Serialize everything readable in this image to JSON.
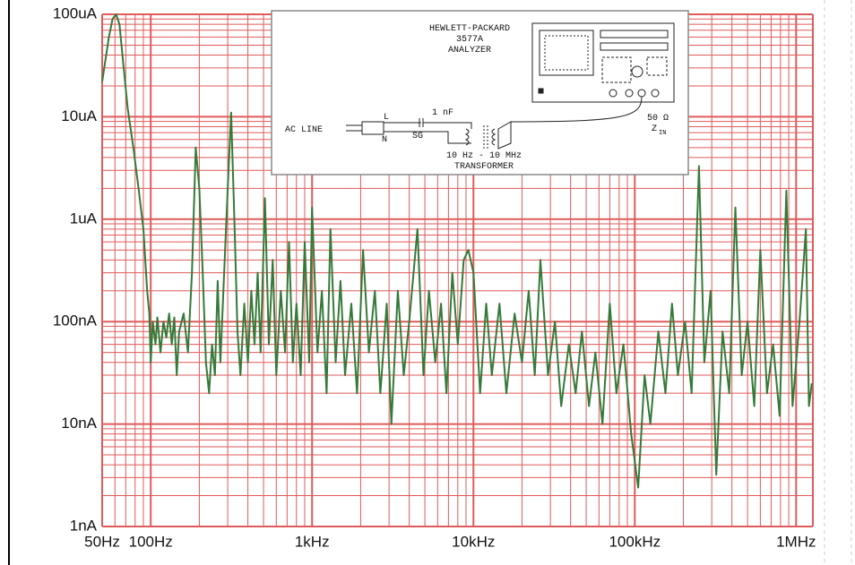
{
  "chart_data": {
    "type": "line",
    "xscale": "log",
    "yscale": "log",
    "xlim": [
      50,
      1270000
    ],
    "ylim": [
      1e-09,
      0.0001
    ],
    "xticks": [
      {
        "value": 50,
        "label": "50Hz"
      },
      {
        "value": 100,
        "label": "100Hz"
      },
      {
        "value": 1000,
        "label": "1kHz"
      },
      {
        "value": 10000,
        "label": "10kHz"
      },
      {
        "value": 100000,
        "label": "100kHz"
      },
      {
        "value": 1000000,
        "label": "1MHz"
      }
    ],
    "yticks": [
      {
        "value": 1e-09,
        "label": "1nA"
      },
      {
        "value": 1e-08,
        "label": "10nA"
      },
      {
        "value": 1e-07,
        "label": "100nA"
      },
      {
        "value": 1e-06,
        "label": "1uA"
      },
      {
        "value": 1e-05,
        "label": "10uA"
      },
      {
        "value": 0.0001,
        "label": "100uA"
      }
    ],
    "grid": true,
    "grid_color": "#e05a5a",
    "color": "#357a38",
    "x": [
      50,
      55,
      58,
      61,
      64,
      68,
      72,
      78,
      84,
      90,
      95,
      98,
      100,
      103,
      107,
      110,
      115,
      120,
      125,
      130,
      135,
      140,
      145,
      150,
      160,
      170,
      180,
      190,
      200,
      210,
      220,
      230,
      240,
      250,
      260,
      270,
      285,
      300,
      315,
      330,
      345,
      360,
      380,
      400,
      420,
      440,
      460,
      480,
      510,
      540,
      570,
      600,
      640,
      680,
      720,
      760,
      800,
      850,
      900,
      960,
      1000,
      1080,
      1150,
      1230,
      1300,
      1400,
      1500,
      1600,
      1750,
      1900,
      2070,
      2250,
      2450,
      2650,
      2900,
      3100,
      3400,
      3700,
      4000,
      4500,
      4900,
      5300,
      5800,
      6300,
      6800,
      7400,
      8000,
      8700,
      9300,
      10000,
      11000,
      12000,
      13000,
      14500,
      16000,
      18000,
      20000,
      22000,
      24000,
      26000,
      29000,
      32000,
      35000,
      39000,
      43000,
      47000,
      52000,
      57000,
      63000,
      70000,
      77000,
      85000,
      95000,
      105000,
      115000,
      125000,
      140000,
      155000,
      170000,
      185000,
      205000,
      225000,
      250000,
      270000,
      295000,
      320000,
      350000,
      385000,
      420000,
      460000,
      500000,
      550000,
      600000,
      660000,
      720000,
      790000,
      870000,
      950000,
      1050000,
      1150000,
      1200000,
      1250000
    ],
    "values": [
      2.2e-05,
      6e-05,
      9e-05,
      0.0001,
      8e-05,
      3e-05,
      1.2e-05,
      5e-06,
      2e-06,
      8e-07,
      2e-07,
      1.2e-07,
      4e-08,
      1e-07,
      6e-08,
      1.1e-07,
      5e-08,
      1e-07,
      7e-08,
      1.2e-07,
      6e-08,
      1.1e-07,
      3e-08,
      8e-08,
      1.2e-07,
      5e-08,
      3e-07,
      5e-06,
      2e-06,
      3e-07,
      4e-08,
      2e-08,
      6e-08,
      3e-08,
      2.5e-07,
      4e-08,
      3e-07,
      2e-06,
      1.1e-05,
      1e-06,
      8e-08,
      3e-08,
      1.5e-07,
      4e-08,
      2e-07,
      6e-08,
      3e-07,
      5e-08,
      1.6e-06,
      6e-08,
      4e-07,
      3e-08,
      2e-07,
      5e-08,
      6e-07,
      4e-08,
      1.5e-07,
      3e-08,
      6e-07,
      4e-08,
      1.3e-06,
      5e-08,
      2e-07,
      2e-08,
      8e-07,
      4e-08,
      2.5e-07,
      3e-08,
      1.5e-07,
      2e-08,
      5e-07,
      5e-08,
      2e-07,
      2e-08,
      1.5e-07,
      1e-08,
      2e-07,
      3e-08,
      1e-07,
      8e-07,
      3e-08,
      2e-07,
      4e-08,
      1.5e-07,
      2e-08,
      3e-07,
      6e-08,
      4e-07,
      5e-07,
      3e-07,
      2e-08,
      1.5e-07,
      3e-08,
      1.5e-07,
      2e-08,
      1.2e-07,
      4e-08,
      2e-07,
      3e-08,
      4e-07,
      3e-08,
      1e-07,
      1.5e-08,
      6e-08,
      2e-08,
      8e-08,
      1.5e-08,
      5e-08,
      1e-08,
      1.5e-07,
      2e-08,
      6e-08,
      8e-09,
      2.4e-09,
      3e-08,
      1e-08,
      8e-08,
      2e-08,
      1.5e-07,
      3e-08,
      1e-07,
      2e-08,
      3.3e-06,
      4e-08,
      2e-07,
      3.2e-09,
      8e-08,
      2e-08,
      1.3e-06,
      3e-08,
      1e-07,
      1.5e-08,
      5e-07,
      2e-08,
      6e-08,
      1.2e-08,
      1.9e-06,
      1.5e-08,
      1e-07,
      8e-07,
      1.5e-08,
      2.5e-08
    ],
    "diagram": {
      "maker": "HEWLETT-PACKARD",
      "model": "3577A",
      "kind": "ANALYZER",
      "ac_line": "AC LINE",
      "l": "L",
      "n": "N",
      "sg": "SG",
      "capacitor": "1 nF",
      "transformer_range": "10 Hz - 10 MHz",
      "transformer": "TRANSFORMER",
      "impedance": "50 Ω",
      "z": "Z",
      "z_sub": "IN"
    }
  }
}
